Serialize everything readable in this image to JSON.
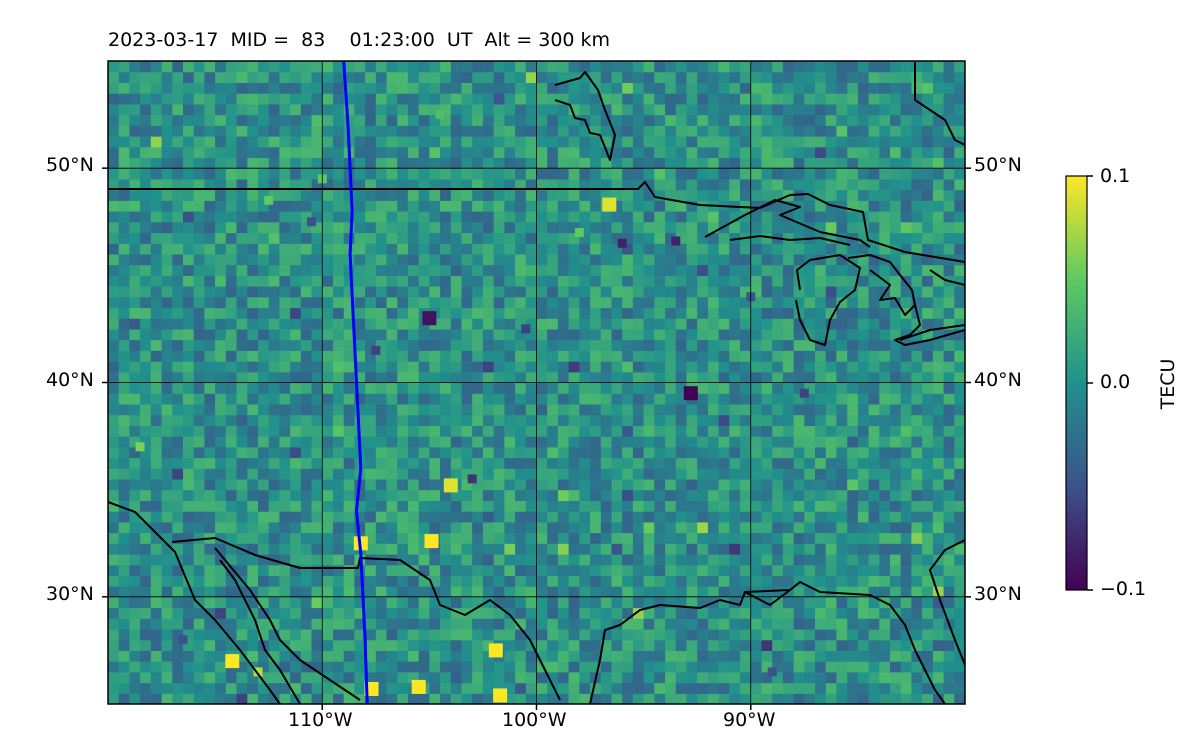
{
  "title": "2023-03-17  MID =  83    01:23:00  UT  Alt = 300 km",
  "chart_data": {
    "type": "heatmap",
    "title": "2023-03-17  MID =  83    01:23:00  UT  Alt = 300 km",
    "projection": "longitude-latitude map",
    "xlim": [
      -120,
      -80
    ],
    "ylim": [
      25,
      55
    ],
    "x_ticks": [
      {
        "value": -110,
        "label": "110°W"
      },
      {
        "value": -100,
        "label": "100°W"
      },
      {
        "value": -90,
        "label": "90°W"
      }
    ],
    "y_ticks": [
      {
        "value": 30,
        "label": "30°N"
      },
      {
        "value": 40,
        "label": "40°N"
      },
      {
        "value": 50,
        "label": "50°N"
      }
    ],
    "grid": true,
    "colormap": [
      "#440154",
      "#3b528b",
      "#21918c",
      "#5ec962",
      "#fde725"
    ],
    "colorbar": {
      "label": "TECU",
      "range": [
        -0.1,
        0.1
      ],
      "ticks": [
        {
          "value": 0.1,
          "label": "0.1"
        },
        {
          "value": 0.0,
          "label": "0.0"
        },
        {
          "value": -0.1,
          "label": "−0.1"
        }
      ],
      "placement": "right"
    },
    "background_level": 0.0,
    "high_patches": [
      {
        "lon": -114.2,
        "lat": 27.0,
        "value": 0.1
      },
      {
        "lon": -105.5,
        "lat": 25.8,
        "value": 0.1
      },
      {
        "lon": -101.7,
        "lat": 25.4,
        "value": 0.1
      },
      {
        "lon": -107.7,
        "lat": 25.7,
        "value": 0.1
      },
      {
        "lon": -104.0,
        "lat": 35.2,
        "value": 0.09
      },
      {
        "lon": -108.2,
        "lat": 32.5,
        "value": 0.1
      },
      {
        "lon": -101.9,
        "lat": 27.5,
        "value": 0.1
      },
      {
        "lon": -104.9,
        "lat": 32.6,
        "value": 0.1
      },
      {
        "lon": -96.6,
        "lat": 48.3,
        "value": 0.09
      },
      {
        "lon": -113.0,
        "lat": 26.5,
        "value": 0.08
      },
      {
        "lon": -118.5,
        "lat": 37.0,
        "value": 0.06
      },
      {
        "lon": -112.5,
        "lat": 48.5,
        "value": 0.05
      },
      {
        "lon": -110.0,
        "lat": 49.5,
        "value": 0.05
      },
      {
        "lon": -98.0,
        "lat": 47.0,
        "value": 0.05
      },
      {
        "lon": -104.5,
        "lat": 52.5,
        "value": 0.04
      }
    ],
    "low_patches": [
      {
        "lon": -92.8,
        "lat": 39.5,
        "value": -0.1
      },
      {
        "lon": -105.0,
        "lat": 43.0,
        "value": -0.09
      },
      {
        "lon": -96.0,
        "lat": 46.5,
        "value": -0.08
      },
      {
        "lon": -93.5,
        "lat": 46.6,
        "value": -0.08
      },
      {
        "lon": -103.0,
        "lat": 35.5,
        "value": -0.07
      },
      {
        "lon": -107.5,
        "lat": 41.5,
        "value": -0.06
      },
      {
        "lon": -87.5,
        "lat": 39.5,
        "value": -0.06
      },
      {
        "lon": -116.5,
        "lat": 28.0,
        "value": -0.05
      },
      {
        "lon": -89.0,
        "lat": 26.5,
        "value": -0.05
      },
      {
        "lon": -110.5,
        "lat": 47.5,
        "value": -0.05
      },
      {
        "lon": -90.0,
        "lat": 44.0,
        "value": -0.05
      },
      {
        "lon": -100.5,
        "lat": 42.5,
        "value": -0.06
      }
    ],
    "overlays": [
      {
        "type": "meridian-track",
        "color": "#0000ff",
        "points": [
          [
            -109.0,
            55
          ],
          [
            -108.8,
            52
          ],
          [
            -108.7,
            50
          ],
          [
            -108.6,
            48
          ],
          [
            -108.7,
            46
          ],
          [
            -108.6,
            44
          ],
          [
            -108.5,
            42
          ],
          [
            -108.4,
            40
          ],
          [
            -108.3,
            38
          ],
          [
            -108.2,
            36
          ],
          [
            -108.4,
            34
          ],
          [
            -108.2,
            32
          ],
          [
            -108.1,
            30
          ],
          [
            -108.0,
            28
          ],
          [
            -107.9,
            25
          ]
        ]
      },
      {
        "type": "coastlines-and-borders",
        "color": "#000000"
      }
    ]
  }
}
